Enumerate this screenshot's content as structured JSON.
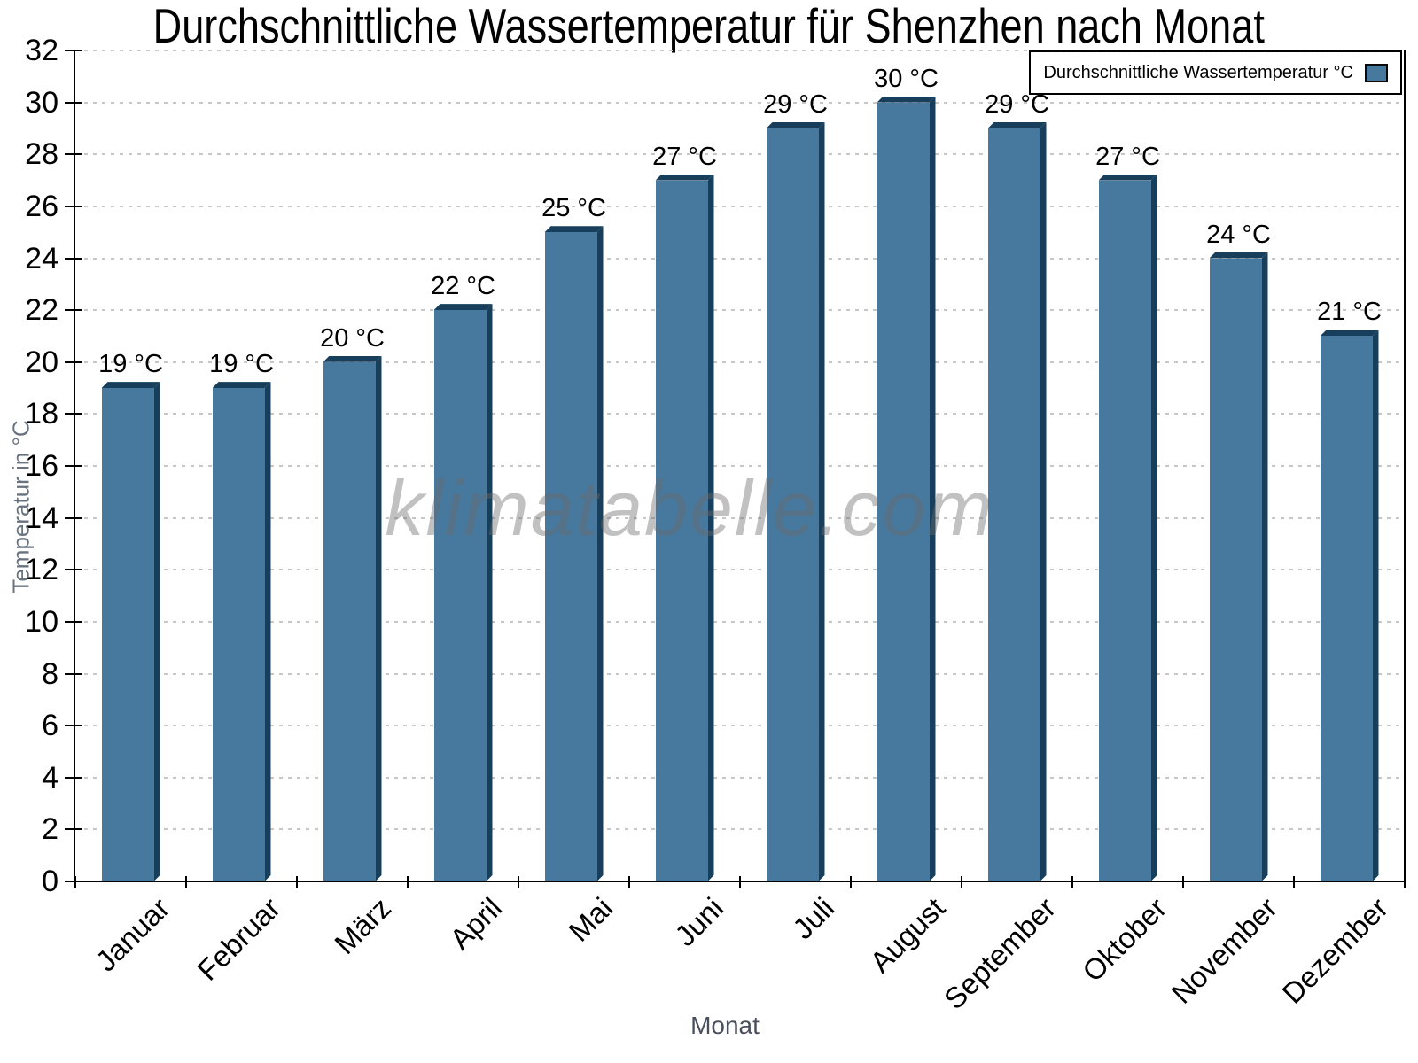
{
  "title": "Durchschnittliche Wassertemperatur für Shenzhen nach Monat",
  "legend": {
    "label": "Durchschnittliche Wassertemperatur °C",
    "swatch_color": "#47789d"
  },
  "watermark": "klimatabelle.com",
  "chart_data": {
    "type": "bar",
    "title": "Durchschnittliche Wassertemperatur für Shenzhen nach Monat",
    "categories": [
      "Januar",
      "Februar",
      "März",
      "April",
      "Mai",
      "Juni",
      "Juli",
      "August",
      "September",
      "Oktober",
      "November",
      "Dezember"
    ],
    "values": [
      19,
      19,
      20,
      22,
      25,
      27,
      29,
      30,
      29,
      27,
      24,
      21
    ],
    "bar_labels": [
      "19 °C",
      "19 °C",
      "20 °C",
      "22 °C",
      "25 °C",
      "27 °C",
      "29 °C",
      "30 °C",
      "29 °C",
      "27 °C",
      "24 °C",
      "21 °C"
    ],
    "xlabel": "Monat",
    "ylabel": "Temperatur in °C",
    "ylim": [
      0,
      32
    ],
    "ytick_step": 2,
    "yticks": [
      0,
      2,
      4,
      6,
      8,
      10,
      12,
      14,
      16,
      18,
      20,
      22,
      24,
      26,
      28,
      30,
      32
    ],
    "grid": "horizontal-dotted",
    "legend_position": "top-right",
    "colors": {
      "bar_face": "#47789d",
      "bar_shade": "#173f5c",
      "gridline": "#c6c6c6",
      "axis": "#000000",
      "tick_label": "#000000",
      "ylabel_text": "#68737f",
      "xlabel_text": "#4a505b",
      "watermark_text": "rgba(108,108,108,0.42)"
    }
  }
}
